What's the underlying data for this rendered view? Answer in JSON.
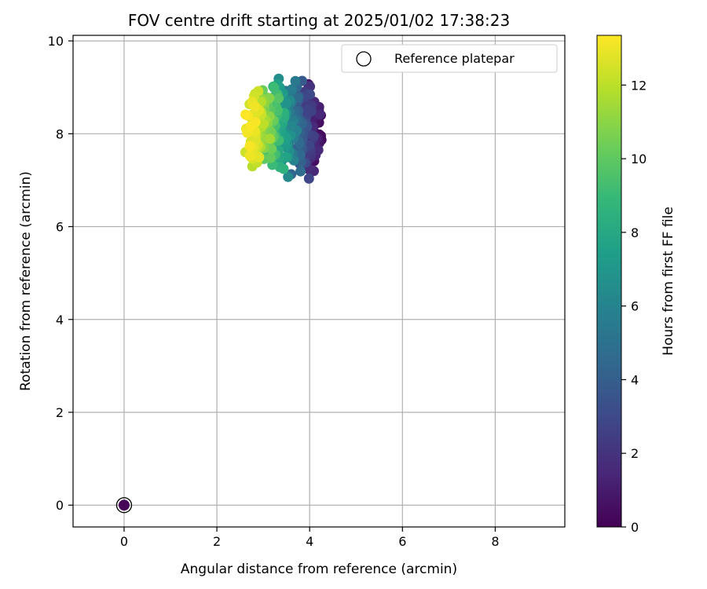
{
  "chart_data": {
    "type": "scatter",
    "title": "FOV centre drift starting at 2025/01/02 17:38:23",
    "xlabel": "Angular distance from reference (arcmin)",
    "ylabel": "Rotation from reference (arcmin)",
    "xlim": [
      -1.1,
      9.5
    ],
    "ylim": [
      -0.47,
      10.12
    ],
    "xticks": [
      0,
      2,
      4,
      6,
      8
    ],
    "yticks": [
      0,
      2,
      4,
      6,
      8,
      10
    ],
    "grid": true,
    "legend": {
      "position": "top-right",
      "entries": [
        "Reference platepar"
      ]
    },
    "colorbar": {
      "label": "Hours from first FF file",
      "range": [
        0,
        13.35
      ],
      "ticks": [
        0,
        2,
        4,
        6,
        8,
        10,
        12
      ],
      "colormap": "viridis"
    },
    "reference_point": {
      "x": 0,
      "y": 0,
      "hours": 0.2
    },
    "marker_color_ramp": [
      "#440154",
      "#482878",
      "#3e4989",
      "#31688e",
      "#26828e",
      "#1f9e89",
      "#35b779",
      "#6ece58",
      "#b5de2b",
      "#fde725"
    ],
    "cluster": {
      "count": 420,
      "x_start": 4.15,
      "x_end": 2.72,
      "x_jitter": 0.18,
      "y_center": 8.1,
      "y_spread": 0.42,
      "hours_start": 0.3,
      "hours_end": 13.3
    }
  }
}
